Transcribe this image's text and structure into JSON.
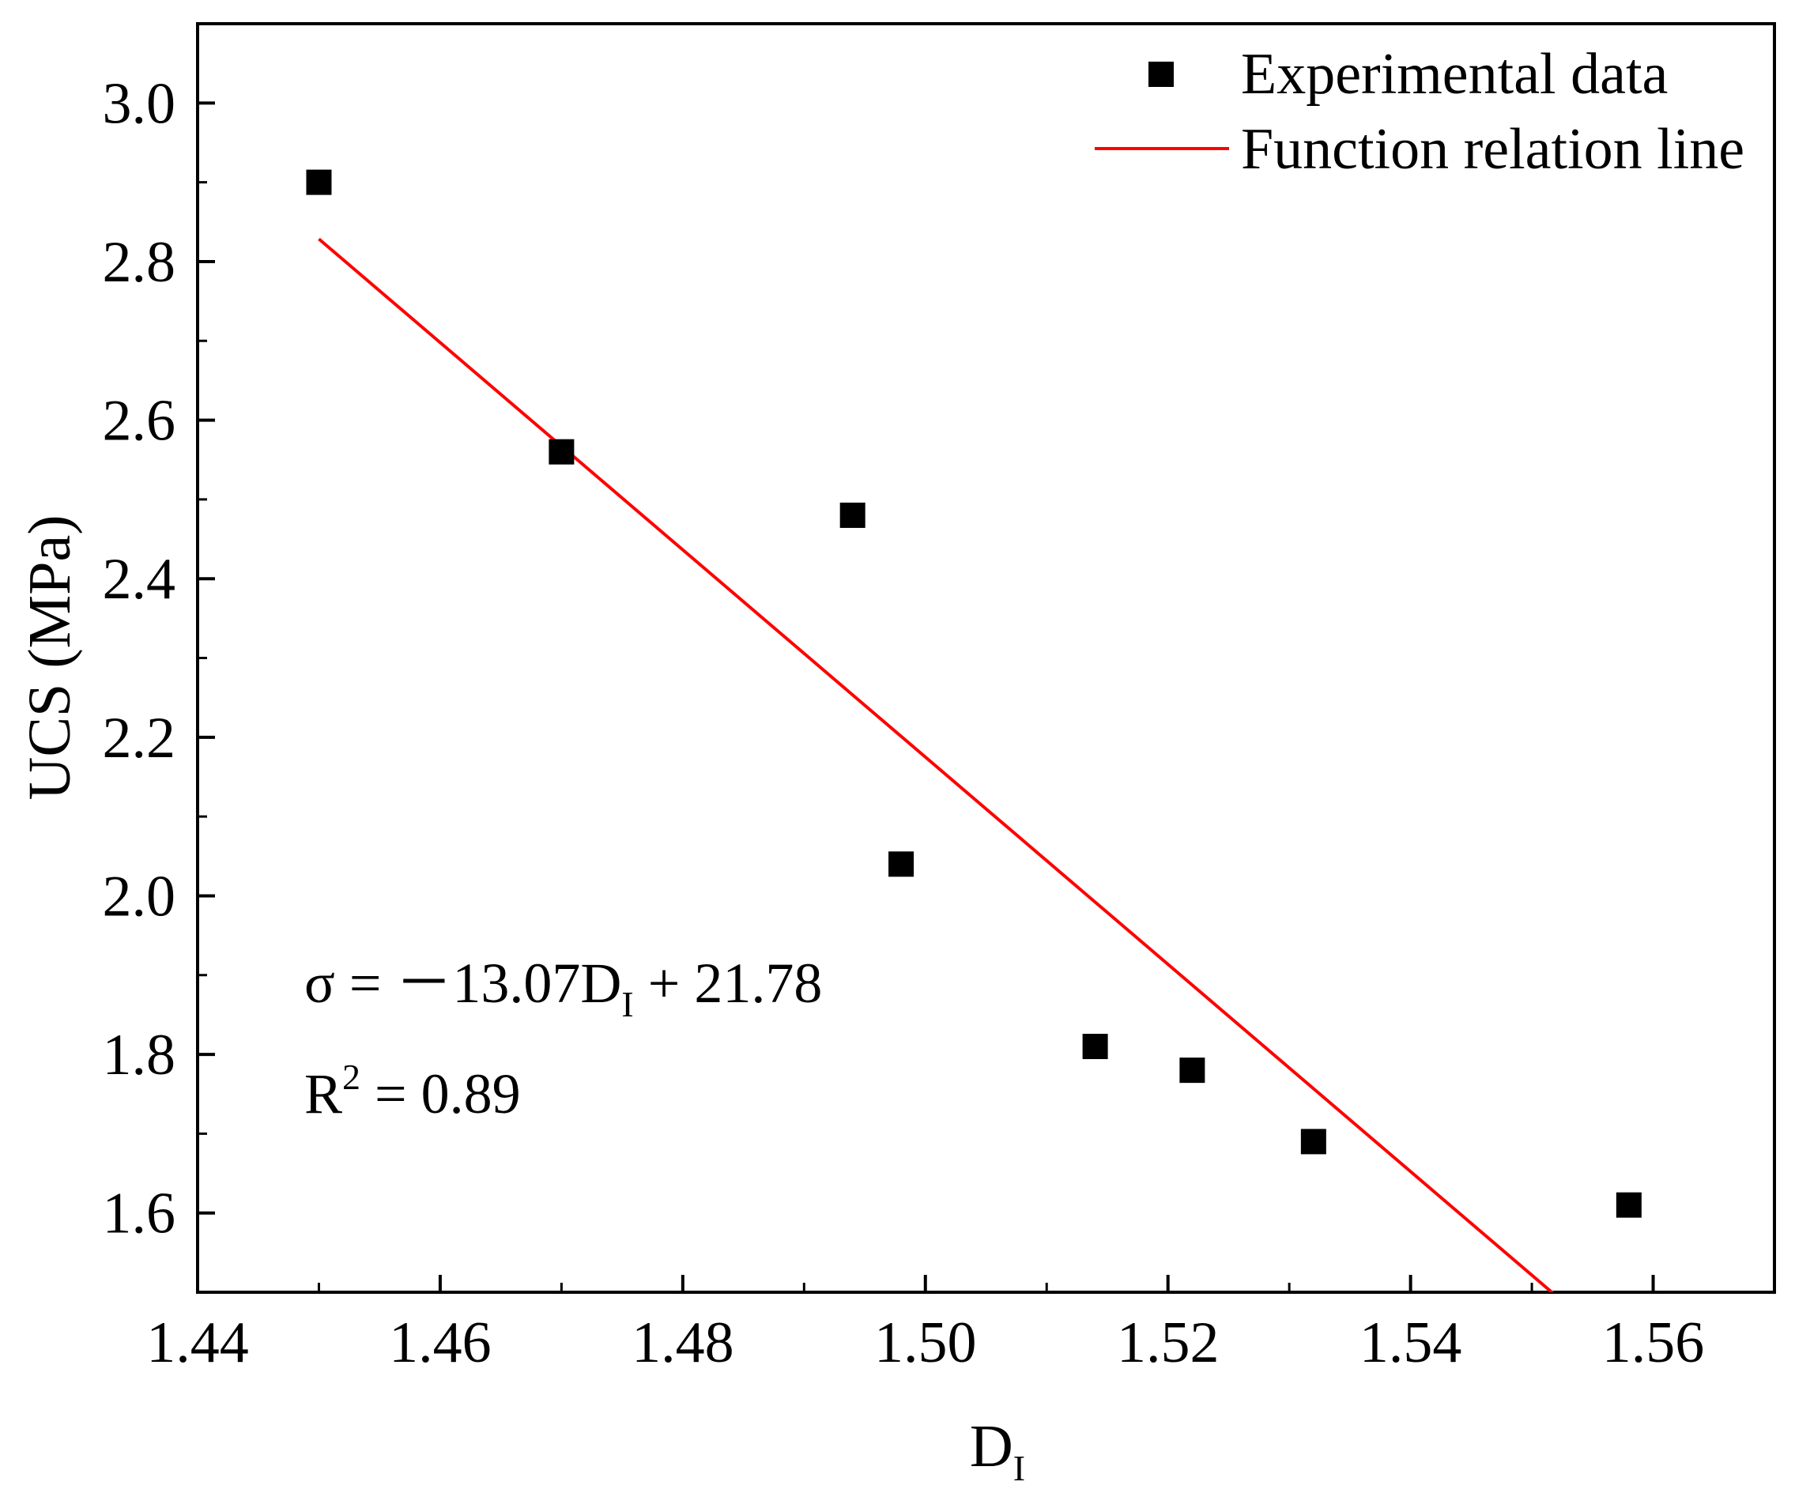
{
  "chart_data": {
    "type": "scatter",
    "title": "",
    "xlabel": "D",
    "xlabel_subscript": "I",
    "ylabel": "UCS (MPa)",
    "xlim": [
      1.44,
      1.57
    ],
    "ylim": [
      1.5,
      3.1
    ],
    "x_ticks": [
      1.44,
      1.46,
      1.48,
      1.5,
      1.52,
      1.54,
      1.56
    ],
    "x_tick_labels": [
      "1.44",
      "1.46",
      "1.48",
      "1.50",
      "1.52",
      "1.54",
      "1.56"
    ],
    "y_ticks": [
      1.6,
      1.8,
      2.0,
      2.2,
      2.4,
      2.6,
      2.8,
      3.0
    ],
    "y_tick_labels": [
      "1.6",
      "1.8",
      "2.0",
      "2.2",
      "2.4",
      "2.6",
      "2.8",
      "3.0"
    ],
    "grid": false,
    "legend_position": "top-right",
    "series": [
      {
        "name": "Experimental data",
        "kind": "scatter",
        "marker": "square",
        "color": "#000000",
        "x": [
          1.45,
          1.47,
          1.494,
          1.498,
          1.514,
          1.522,
          1.532,
          1.558
        ],
        "y": [
          2.9,
          2.56,
          2.48,
          2.04,
          1.81,
          1.78,
          1.69,
          1.61
        ]
      },
      {
        "name": "Function relation line",
        "kind": "line",
        "color": "#ff0000",
        "slope": -13.07,
        "intercept": 21.78,
        "x_start": 1.45
      }
    ],
    "annotations": {
      "equation_prefix": "σ = －13.07D",
      "equation_sub": "I",
      "equation_suffix": " + 21.78",
      "r2_prefix": "R",
      "r2_sup": "2",
      "r2_suffix": " = 0.89"
    }
  }
}
